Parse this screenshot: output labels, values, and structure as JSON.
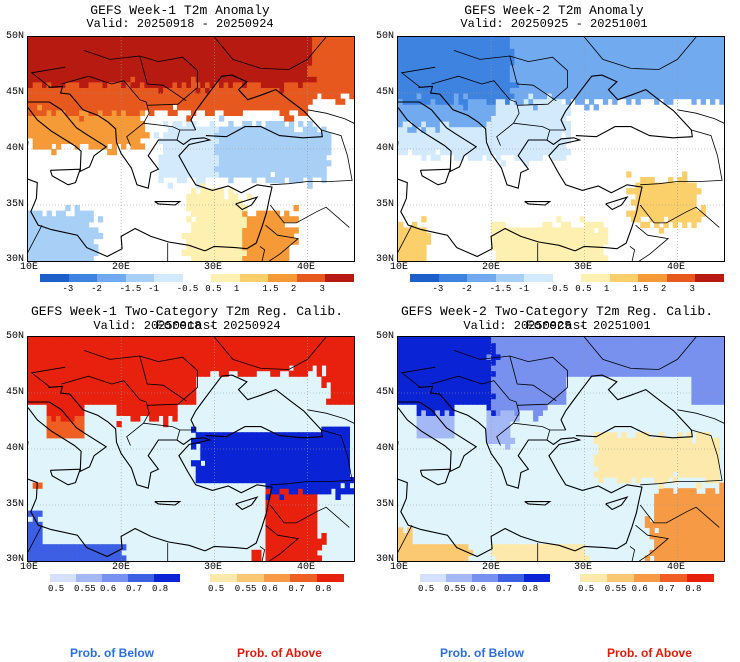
{
  "panels": [
    {
      "title": "GEFS Week-1 T2m Anomaly",
      "valid": "Valid: 20250918 - 20250924",
      "kind": "anom_w1"
    },
    {
      "title": "GEFS Week-2 T2m Anomaly",
      "valid": "Valid: 20250925 - 20251001",
      "kind": "anom_w2"
    },
    {
      "title": "GEFS Week-1 Two-Category T2m Reg. Calib. Forecast",
      "valid": "Valid: 20250918 - 20250924",
      "kind": "prob_w1"
    },
    {
      "title": "GEFS Week-2 Two-Category T2m Reg. Calib. Forecast",
      "valid": "Valid: 20250925 - 20251001",
      "kind": "prob_w2"
    }
  ],
  "axes": {
    "lat_labels": [
      "50N",
      "45N",
      "40N",
      "35N",
      "30N"
    ],
    "lon_labels": [
      "10E",
      "20E",
      "30E",
      "40E"
    ]
  },
  "anomaly_colorbar": {
    "labels": [
      "-3",
      "-2",
      "-1.5",
      "-1",
      "-0.5",
      "0.5",
      "1",
      "1.5",
      "2",
      "3"
    ],
    "colors": [
      "#1d5fc8",
      "#3f83e0",
      "#72aaf0",
      "#a8d0f7",
      "#d2eafc",
      "#ffffff",
      "#fdf0b0",
      "#fbcf6a",
      "#f59a37",
      "#e7581e",
      "#b71a10"
    ]
  },
  "prob_below_colorbar": {
    "labels": [
      "0.5",
      "0.55",
      "0.6",
      "0.7",
      "0.8"
    ],
    "colors": [
      "#d6e0ff",
      "#a4b8f6",
      "#7890ee",
      "#3d5fe4",
      "#0a23d4"
    ]
  },
  "prob_above_colorbar": {
    "labels": [
      "0.5",
      "0.55",
      "0.6",
      "0.7",
      "0.8"
    ],
    "colors": [
      "#fde9ab",
      "#fbc972",
      "#f69a45",
      "#ef5e23",
      "#e8200e"
    ]
  },
  "legend": {
    "below_label": "Prob. of Below",
    "above_label": "Prob. of Above",
    "below_color": "#2a6fe0",
    "above_color": "#e01a0a"
  },
  "style": {
    "sea_color": "#dff5fb",
    "coast_color": "#000000",
    "grid_color": "#999999"
  }
}
